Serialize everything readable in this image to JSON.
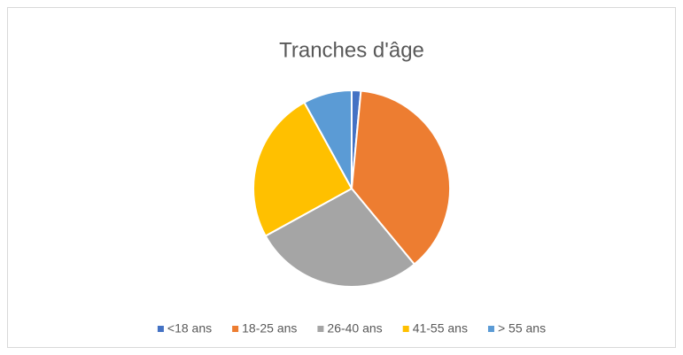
{
  "chart_data": {
    "type": "pie",
    "title": "Tranches d'âge",
    "categories": [
      "<18 ans",
      "18-25 ans",
      "26-40 ans",
      "41-55 ans",
      "> 55 ans"
    ],
    "values": [
      1.5,
      37.5,
      28,
      25,
      8
    ],
    "colors": [
      "#4472c4",
      "#ed7d31",
      "#a5a5a5",
      "#ffc000",
      "#5b9bd5"
    ],
    "legend": "bottom"
  }
}
